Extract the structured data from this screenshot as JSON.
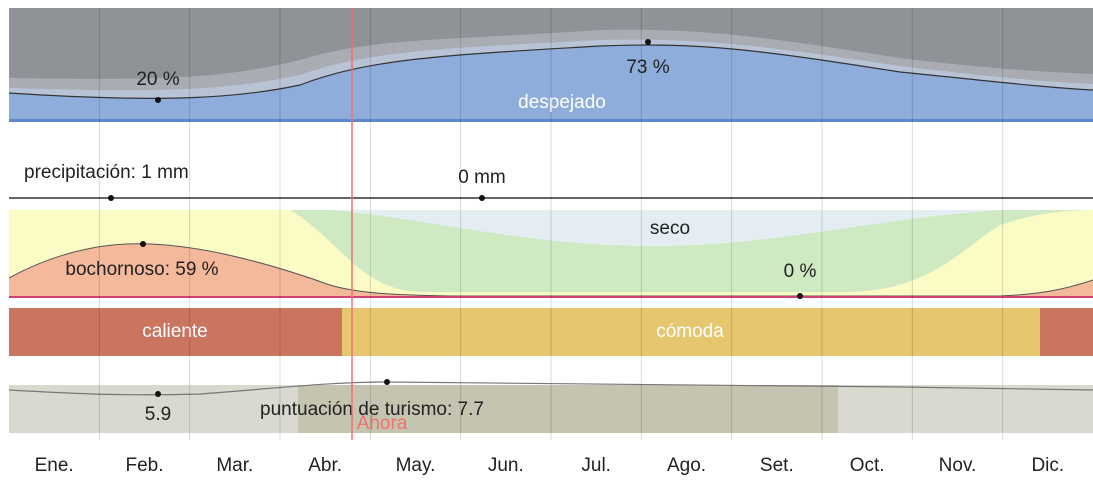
{
  "months": [
    "Ene.",
    "Feb.",
    "Mar.",
    "Abr.",
    "May.",
    "Jun.",
    "Jul.",
    "Ago.",
    "Set.",
    "Oct.",
    "Nov.",
    "Dic."
  ],
  "clouds": {
    "min_label": "20 %",
    "max_label": "73 %",
    "area_label": "despejado"
  },
  "precipitation": {
    "max_label": "precipitación: 1 mm",
    "min_label": "0 mm"
  },
  "humidity": {
    "max_label": "bochornoso: 59 %",
    "min_label": "0 %",
    "area_label": "seco"
  },
  "temperature": {
    "hot_label": "caliente",
    "comfortable_label": "cómoda"
  },
  "tourism": {
    "min_label": "5.9",
    "max_label": "puntuación de turismo: 7.7"
  },
  "now_label": "Ahora"
}
